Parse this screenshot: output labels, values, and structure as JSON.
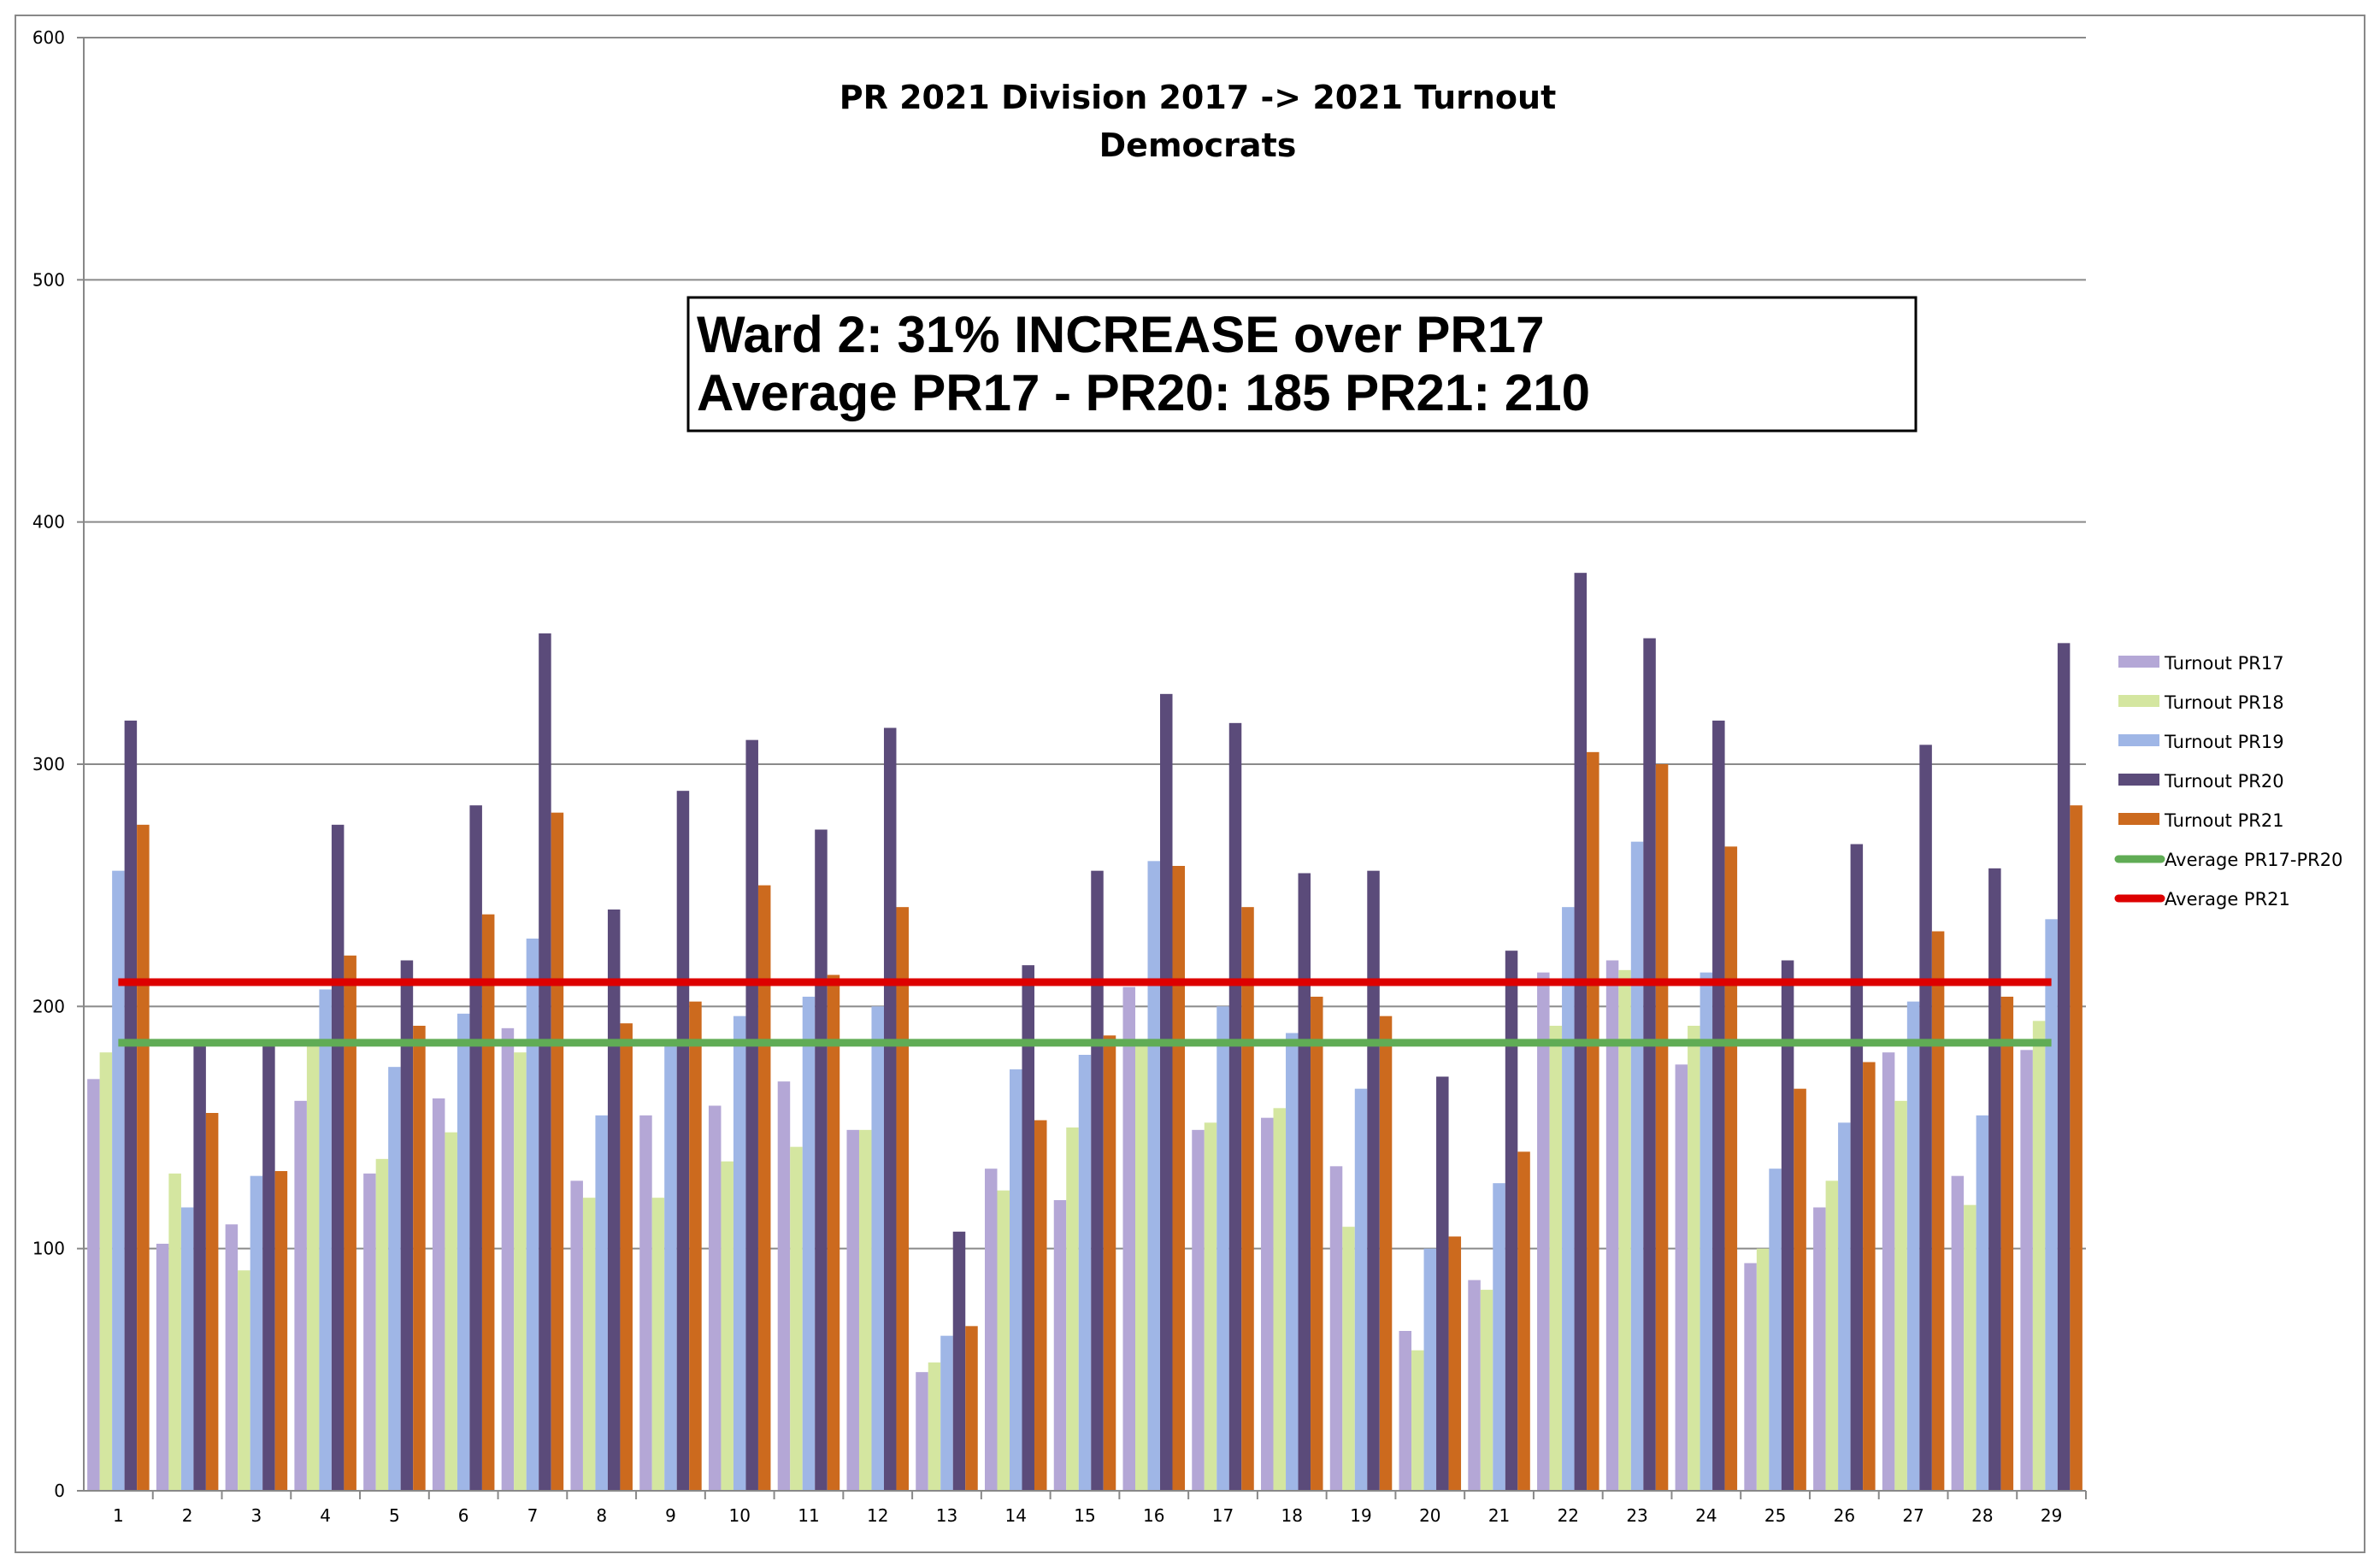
{
  "chart_data": {
    "type": "bar",
    "title": "PR 2021 Division 2017 -> 2021 Turnout",
    "subtitle": "Democrats",
    "annotation": [
      "Ward 2:  31% INCREASE over PR17",
      "Average PR17 - PR20:  185  PR21:  210"
    ],
    "xlabel": "",
    "ylabel": "",
    "ylim": [
      0,
      600
    ],
    "yticks": [
      0,
      100,
      200,
      300,
      400,
      500,
      600
    ],
    "grid": true,
    "legend_position": "right",
    "categories": [
      "1",
      "2",
      "3",
      "4",
      "5",
      "6",
      "7",
      "8",
      "9",
      "10",
      "11",
      "12",
      "13",
      "14",
      "15",
      "16",
      "17",
      "18",
      "19",
      "20",
      "21",
      "22",
      "23",
      "24",
      "25",
      "26",
      "27",
      "28",
      "29"
    ],
    "series": [
      {
        "name": "Turnout PR17",
        "color": "#b4a7d6",
        "values": [
          170,
          102,
          110,
          161,
          131,
          162,
          191,
          128,
          155,
          159,
          169,
          149,
          49,
          133,
          120,
          208,
          149,
          154,
          134,
          66,
          87,
          214,
          219,
          176,
          94,
          117,
          181,
          130,
          182
        ]
      },
      {
        "name": "Turnout PR18",
        "color": "#d4e6a0",
        "values": [
          181,
          131,
          91,
          185,
          137,
          148,
          181,
          121,
          121,
          136,
          142,
          149,
          53,
          124,
          150,
          185,
          152,
          158,
          109,
          58,
          83,
          192,
          215,
          192,
          100,
          128,
          161,
          118,
          194
        ]
      },
      {
        "name": "Turnout PR19",
        "color": "#9fb6e6",
        "values": [
          256,
          117,
          130,
          207,
          175,
          197,
          228,
          155,
          185,
          196,
          204,
          200,
          64,
          174,
          180,
          260,
          200,
          189,
          166,
          100,
          127,
          241,
          268,
          214,
          133,
          152,
          202,
          155,
          236
        ]
      },
      {
        "name": "Turnout PR20",
        "color": "#5b4b7a",
        "values": [
          318,
          185,
          184,
          275,
          219,
          283,
          354,
          240,
          289,
          310,
          273,
          315,
          107,
          217,
          256,
          329,
          317,
          255,
          256,
          171,
          223,
          379,
          352,
          318,
          219,
          267,
          308,
          257,
          350
        ]
      },
      {
        "name": "Turnout PR21",
        "color": "#cc6a1e",
        "values": [
          275,
          156,
          132,
          221,
          192,
          238,
          280,
          193,
          202,
          250,
          213,
          241,
          68,
          153,
          188,
          258,
          241,
          204,
          196,
          105,
          140,
          305,
          300,
          266,
          166,
          177,
          231,
          204,
          283
        ]
      }
    ],
    "reference_lines": [
      {
        "name": "Average PR17-PR20",
        "color": "#60ac55",
        "value": 185
      },
      {
        "name": "Average PR21",
        "color": "#dd0000",
        "value": 210
      }
    ]
  }
}
